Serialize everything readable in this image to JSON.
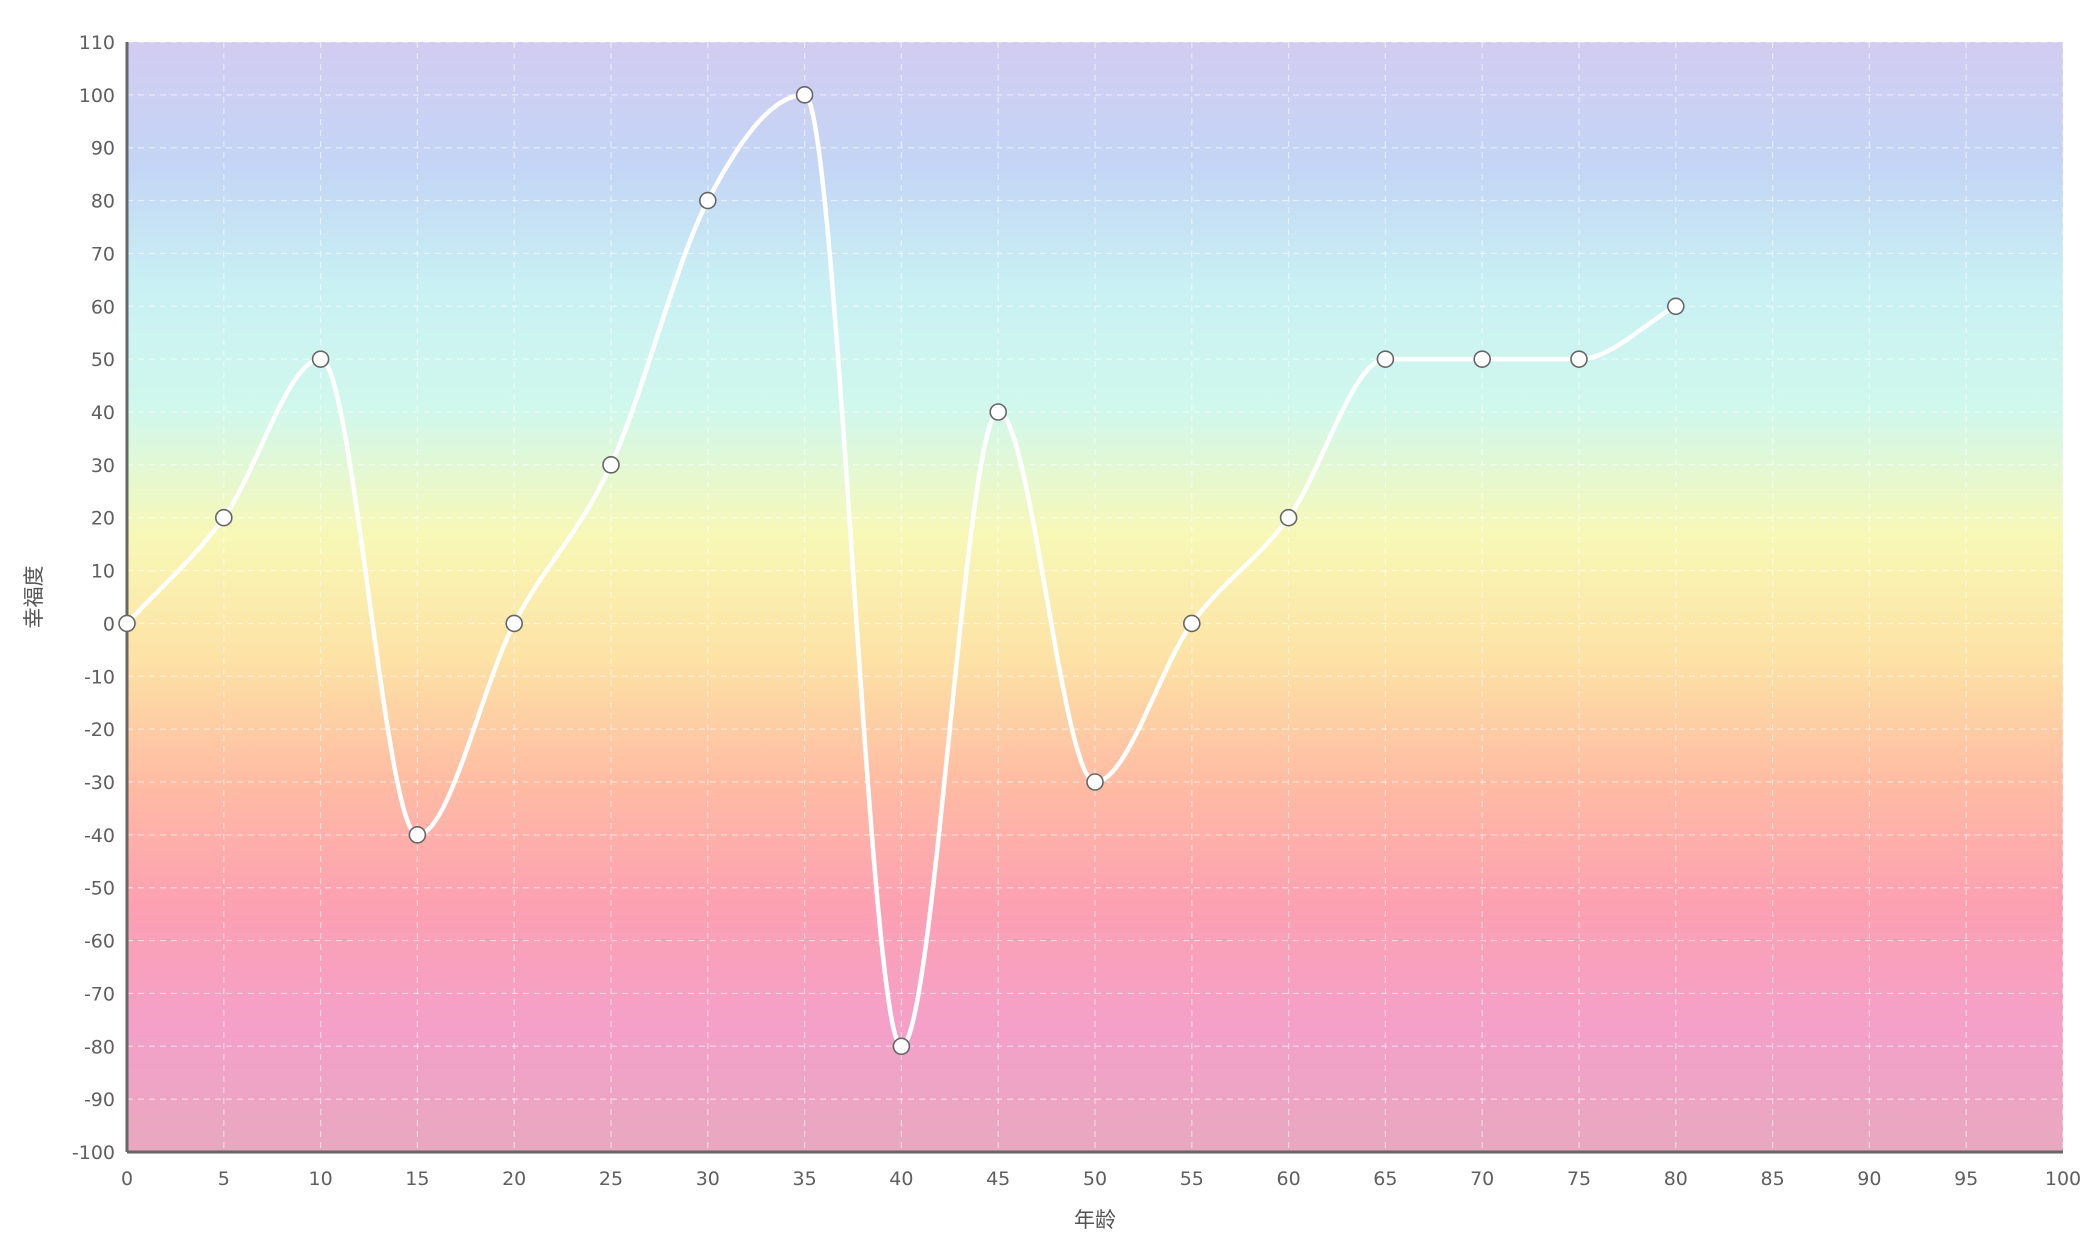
{
  "chart_data": {
    "type": "line",
    "title": "",
    "xlabel": "年龄",
    "ylabel": "幸福度",
    "xlim": [
      0,
      100
    ],
    "ylim": [
      -100,
      110
    ],
    "x_ticks": [
      0,
      5,
      10,
      15,
      20,
      25,
      30,
      35,
      40,
      45,
      50,
      55,
      60,
      65,
      70,
      75,
      80,
      85,
      90,
      95,
      100
    ],
    "y_ticks": [
      110,
      100,
      90,
      80,
      70,
      60,
      50,
      40,
      30,
      20,
      10,
      0,
      -10,
      -20,
      -30,
      -40,
      -50,
      -60,
      -70,
      -80,
      -90,
      -100
    ],
    "grid": true,
    "smooth": true,
    "series": [
      {
        "x": [
          0,
          5,
          10,
          15,
          20,
          25,
          30,
          35,
          40,
          45,
          50,
          55,
          60,
          65,
          70,
          75,
          80
        ],
        "y": [
          0,
          20,
          50,
          -40,
          0,
          30,
          80,
          100,
          -80,
          40,
          -30,
          0,
          20,
          50,
          50,
          50,
          60
        ]
      }
    ],
    "colors": {
      "line": "#ffffff",
      "marker_fill": "#ffffff",
      "marker_stroke": "#666666",
      "axis": "#666666",
      "grid": "#ffffff",
      "tick_text": "#5f5f5f",
      "background_gradient": [
        "#d2ccf1",
        "#c4d5f5",
        "#c9f1f4",
        "#d1f8ec",
        "#f8f8b6",
        "#fde2a5",
        "#ffbca3",
        "#fca0b2",
        "#f4a0c9",
        "#e8a8c0"
      ]
    }
  }
}
